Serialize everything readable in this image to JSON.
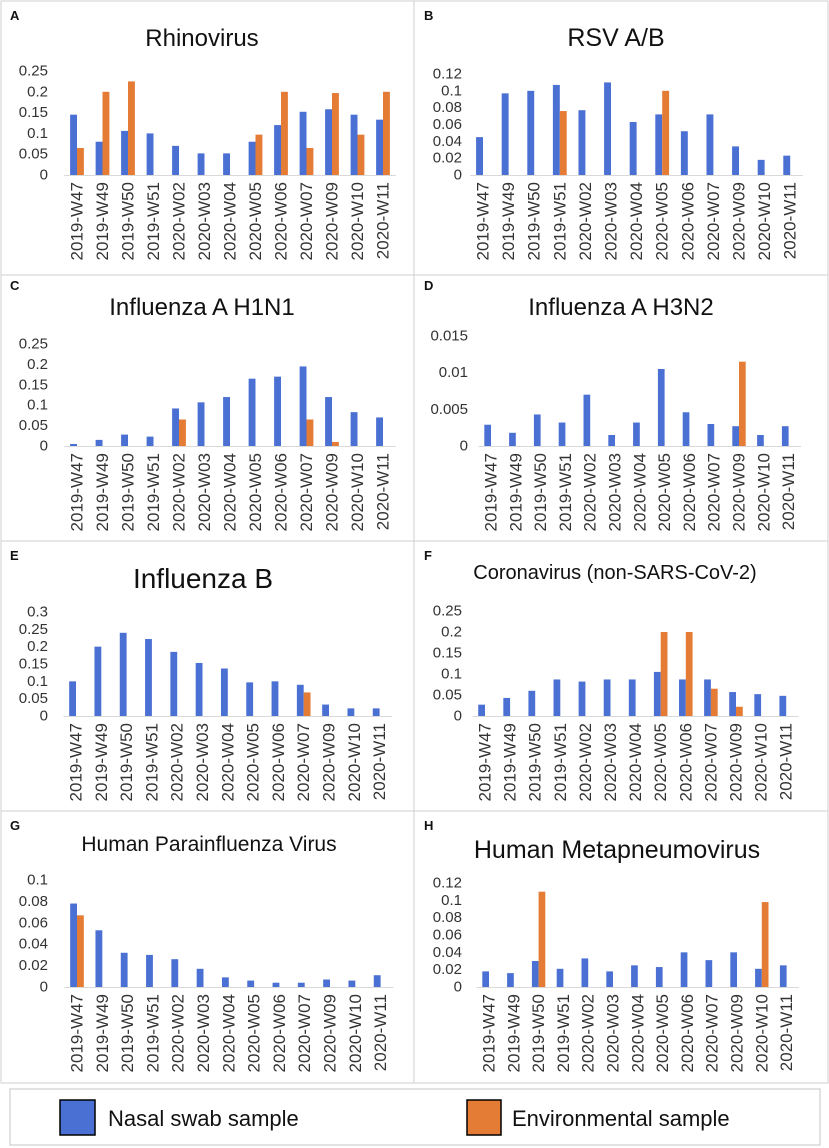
{
  "legend": [
    {
      "label": "Nasal swab sample",
      "color": "#4a70d3"
    },
    {
      "label": "Environmental sample",
      "color": "#e57c36"
    }
  ],
  "chart_data": [
    {
      "type": "bar",
      "panel": "A",
      "title": "Rhinovirus",
      "ylim": [
        0,
        0.25
      ],
      "yticks": [
        "0",
        "0.05",
        "0.1",
        "0.15",
        "0.2",
        "0.25"
      ],
      "categories": [
        "2019-W47",
        "2019-W49",
        "2019-W50",
        "2019-W51",
        "2020-W02",
        "2020-W03",
        "2020-W04",
        "2020-W05",
        "2020-W06",
        "2020-W07",
        "2020-W09",
        "2020-W10",
        "2020-W11"
      ],
      "series": [
        {
          "legend_index": 0,
          "values": [
            0.145,
            0.08,
            0.106,
            0.1,
            0.07,
            0.052,
            0.052,
            0.08,
            0.12,
            0.152,
            0.158,
            0.145,
            0.133
          ]
        },
        {
          "legend_index": 1,
          "values": [
            0.065,
            0.2,
            0.225,
            null,
            null,
            null,
            null,
            0.097,
            0.2,
            0.065,
            0.197,
            0.097,
            0.2
          ]
        }
      ]
    },
    {
      "type": "bar",
      "panel": "B",
      "title": "RSV A/B",
      "ylim": [
        0,
        0.12
      ],
      "yticks": [
        "0",
        "0.02",
        "0.04",
        "0.06",
        "0.08",
        "0.1",
        "0.12"
      ],
      "categories": [
        "2019-W47",
        "2019-W49",
        "2019-W50",
        "2019-W51",
        "2020-W02",
        "2020-W03",
        "2020-W04",
        "2020-W05",
        "2020-W06",
        "2020-W07",
        "2020-W09",
        "2020-W10",
        "2020-W11"
      ],
      "series": [
        {
          "legend_index": 0,
          "values": [
            0.045,
            0.097,
            0.1,
            0.107,
            0.077,
            0.11,
            0.063,
            0.072,
            0.052,
            0.072,
            0.034,
            0.018,
            0.023
          ]
        },
        {
          "legend_index": 1,
          "values": [
            null,
            null,
            null,
            0.076,
            null,
            null,
            null,
            0.1,
            null,
            null,
            null,
            null,
            null
          ]
        }
      ]
    },
    {
      "type": "bar",
      "panel": "C",
      "title": "Influenza A H1N1",
      "ylim": [
        0,
        0.25
      ],
      "yticks": [
        "0",
        "0.05",
        "0.1",
        "0.15",
        "0.2",
        "0.25"
      ],
      "categories": [
        "2019-W47",
        "2019-W49",
        "2019-W50",
        "2019-W51",
        "2020-W02",
        "2020-W03",
        "2020-W04",
        "2020-W05",
        "2020-W06",
        "2020-W07",
        "2020-W09",
        "2020-W10",
        "2020-W11"
      ],
      "series": [
        {
          "legend_index": 0,
          "values": [
            0.005,
            0.015,
            0.028,
            0.023,
            0.092,
            0.107,
            0.12,
            0.165,
            0.17,
            0.195,
            0.12,
            0.083,
            0.07
          ]
        },
        {
          "legend_index": 1,
          "values": [
            null,
            null,
            null,
            null,
            0.065,
            null,
            null,
            null,
            null,
            0.065,
            0.01,
            null,
            null
          ]
        }
      ]
    },
    {
      "type": "bar",
      "panel": "D",
      "title": "Influenza A H3N2",
      "ylim": [
        0,
        0.015
      ],
      "yticks": [
        "0",
        "0.005",
        "0.01",
        "0.015"
      ],
      "categories": [
        "2019-W47",
        "2019-W49",
        "2019-W50",
        "2019-W51",
        "2020-W02",
        "2020-W03",
        "2020-W04",
        "2020-W05",
        "2020-W06",
        "2020-W07",
        "2020-W09",
        "2020-W10",
        "2020-W11"
      ],
      "series": [
        {
          "legend_index": 0,
          "values": [
            0.0029,
            0.0018,
            0.0043,
            0.0032,
            0.007,
            0.0015,
            0.0032,
            0.0105,
            0.0046,
            0.003,
            0.0027,
            0.0015,
            0.0027
          ]
        },
        {
          "legend_index": 1,
          "values": [
            null,
            null,
            null,
            null,
            null,
            null,
            null,
            null,
            null,
            null,
            0.0115,
            null,
            null
          ]
        }
      ]
    },
    {
      "type": "bar",
      "panel": "E",
      "title": "Influenza B",
      "ylim": [
        0,
        0.3
      ],
      "yticks": [
        "0",
        "0.05",
        "0.1",
        "0.15",
        "0.2",
        "0.25",
        "0.3"
      ],
      "categories": [
        "2019-W47",
        "2019-W49",
        "2019-W50",
        "2019-W51",
        "2020-W02",
        "2020-W03",
        "2020-W04",
        "2020-W05",
        "2020-W06",
        "2020-W07",
        "2020-W09",
        "2020-W10",
        "2020-W11"
      ],
      "series": [
        {
          "legend_index": 0,
          "values": [
            0.1,
            0.2,
            0.24,
            0.222,
            0.185,
            0.153,
            0.137,
            0.097,
            0.1,
            0.09,
            0.033,
            0.022,
            0.022
          ]
        },
        {
          "legend_index": 1,
          "values": [
            null,
            null,
            null,
            null,
            null,
            null,
            null,
            null,
            null,
            0.068,
            null,
            null,
            null
          ]
        }
      ]
    },
    {
      "type": "bar",
      "panel": "F",
      "title": "Coronavirus (non-SARS-CoV-2)",
      "ylim": [
        0,
        0.25
      ],
      "yticks": [
        "0",
        "0.05",
        "0.1",
        "0.15",
        "0.2",
        "0.25"
      ],
      "categories": [
        "2019-W47",
        "2019-W49",
        "2019-W50",
        "2019-W51",
        "2020-W02",
        "2020-W03",
        "2020-W04",
        "2020-W05",
        "2020-W06",
        "2020-W07",
        "2020-W09",
        "2020-W10",
        "2020-W11"
      ],
      "series": [
        {
          "legend_index": 0,
          "values": [
            0.027,
            0.043,
            0.06,
            0.087,
            0.082,
            0.087,
            0.087,
            0.105,
            0.087,
            0.087,
            0.057,
            0.052,
            0.048
          ]
        },
        {
          "legend_index": 1,
          "values": [
            null,
            null,
            null,
            null,
            null,
            null,
            null,
            0.2,
            0.2,
            0.065,
            0.022,
            null,
            null
          ]
        }
      ]
    },
    {
      "type": "bar",
      "panel": "G",
      "title": "Human Parainfluenza Virus",
      "ylim": [
        0,
        0.1
      ],
      "yticks": [
        "0",
        "0.02",
        "0.04",
        "0.06",
        "0.08",
        "0.1"
      ],
      "categories": [
        "2019-W47",
        "2019-W49",
        "2019-W50",
        "2019-W51",
        "2020-W02",
        "2020-W03",
        "2020-W04",
        "2020-W05",
        "2020-W06",
        "2020-W07",
        "2020-W09",
        "2020-W10",
        "2020-W11"
      ],
      "series": [
        {
          "legend_index": 0,
          "values": [
            0.078,
            0.053,
            0.032,
            0.03,
            0.026,
            0.017,
            0.009,
            0.006,
            0.004,
            0.004,
            0.007,
            0.006,
            0.011
          ]
        },
        {
          "legend_index": 1,
          "values": [
            0.067,
            null,
            null,
            null,
            null,
            null,
            null,
            null,
            null,
            null,
            null,
            null,
            null
          ]
        }
      ]
    },
    {
      "type": "bar",
      "panel": "H",
      "title": "Human Metapneumovirus",
      "ylim": [
        0,
        0.12
      ],
      "yticks": [
        "0",
        "0.02",
        "0.04",
        "0.06",
        "0.08",
        "0.1",
        "0.12"
      ],
      "categories": [
        "2019-W47",
        "2019-W49",
        "2019-W50",
        "2019-W51",
        "2020-W02",
        "2020-W03",
        "2020-W04",
        "2020-W05",
        "2020-W06",
        "2020-W07",
        "2020-W09",
        "2020-W10",
        "2020-W11"
      ],
      "series": [
        {
          "legend_index": 0,
          "values": [
            0.018,
            0.016,
            0.03,
            0.021,
            0.033,
            0.018,
            0.025,
            0.023,
            0.04,
            0.031,
            0.04,
            0.021,
            0.025
          ]
        },
        {
          "legend_index": 1,
          "values": [
            null,
            null,
            0.11,
            null,
            null,
            null,
            null,
            null,
            null,
            null,
            null,
            0.098,
            null
          ]
        }
      ]
    }
  ]
}
